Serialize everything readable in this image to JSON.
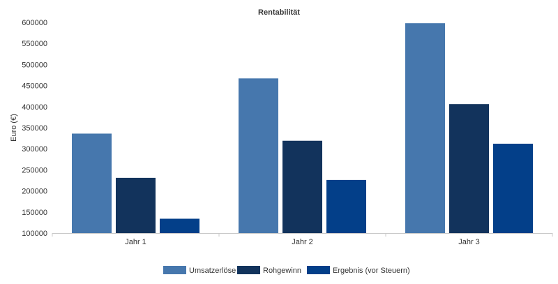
{
  "chart_data": {
    "type": "bar",
    "title": "Rentabilität",
    "xlabel": "",
    "ylabel": "Euro (€)",
    "ylim": [
      100000,
      600000
    ],
    "yticks": [
      100000,
      150000,
      200000,
      250000,
      300000,
      350000,
      400000,
      450000,
      500000,
      550000,
      600000
    ],
    "categories": [
      "Jahr 1",
      "Jahr 2",
      "Jahr 3"
    ],
    "series": [
      {
        "name": "Umsatzerlöse",
        "color": "#4677ad",
        "values": [
          336000,
          467000,
          598000
        ]
      },
      {
        "name": "Rohgewinn",
        "color": "#12335c",
        "values": [
          231000,
          319000,
          406000
        ]
      },
      {
        "name": "Ergebnis (vor Steuern)",
        "color": "#033f89",
        "values": [
          134000,
          226000,
          312000
        ]
      }
    ],
    "grid": false,
    "legend_position": "bottom"
  }
}
